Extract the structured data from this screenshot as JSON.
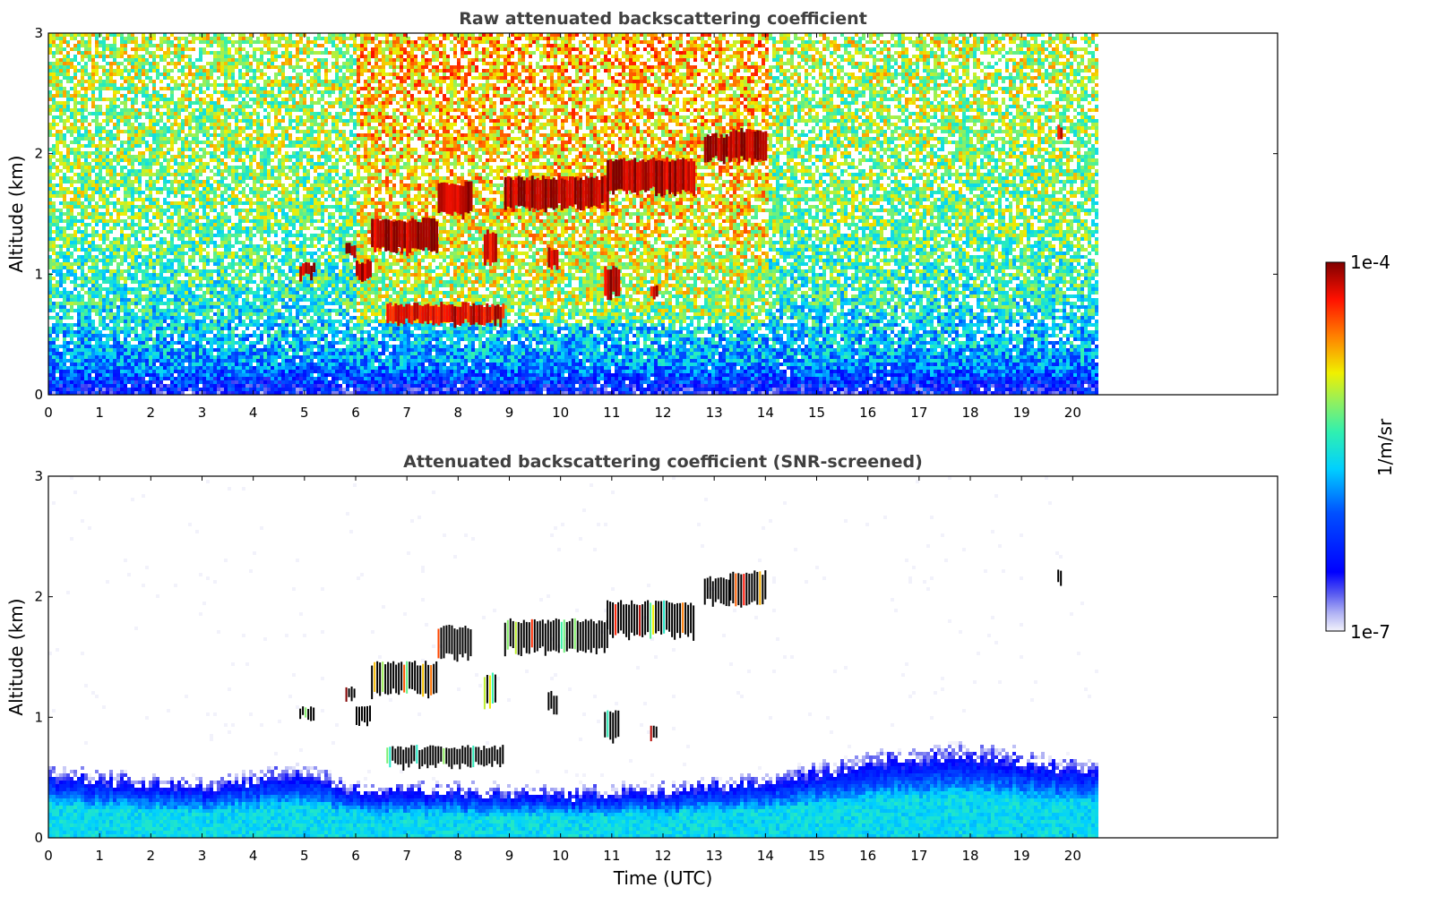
{
  "chart_data": [
    {
      "type": "heatmap",
      "title": "Raw attenuated backscattering coefficient",
      "xlabel": "",
      "ylabel": "Altitude (km)",
      "xlim": [
        0,
        24
      ],
      "ylim": [
        0,
        3
      ],
      "x_ticks": [
        0,
        1,
        2,
        3,
        4,
        5,
        6,
        7,
        8,
        9,
        10,
        11,
        12,
        13,
        14,
        15,
        16,
        17,
        18,
        19,
        20
      ],
      "y_ticks": [
        0,
        1,
        2,
        3
      ],
      "data_extent_hours": [
        0,
        20.45
      ],
      "noise_background": {
        "0.0": 3e-07,
        "0.3": 1.5e-06,
        "0.8": 3.5e-06,
        "1.5": 6e-06,
        "3.0": 9e-06
      },
      "aerosol_layers": [
        {
          "time_start": 4.9,
          "time_end": 5.2,
          "alt_bottom": 0.98,
          "alt_top": 1.08,
          "value": 0.0001
        },
        {
          "time_start": 5.8,
          "time_end": 6.0,
          "alt_bottom": 1.15,
          "alt_top": 1.25,
          "value": 0.0001
        },
        {
          "time_start": 6.0,
          "time_end": 6.3,
          "alt_bottom": 0.95,
          "alt_top": 1.1,
          "value": 0.0001
        },
        {
          "time_start": 6.3,
          "time_end": 7.6,
          "alt_bottom": 1.2,
          "alt_top": 1.45,
          "value": 9e-05
        },
        {
          "time_start": 7.6,
          "time_end": 8.25,
          "alt_bottom": 1.5,
          "alt_top": 1.75,
          "value": 0.0001
        },
        {
          "time_start": 8.5,
          "time_end": 8.75,
          "alt_bottom": 1.1,
          "alt_top": 1.35,
          "value": 8e-05
        },
        {
          "time_start": 8.9,
          "time_end": 10.9,
          "alt_bottom": 1.55,
          "alt_top": 1.8,
          "value": 0.0001
        },
        {
          "time_start": 10.9,
          "time_end": 12.6,
          "alt_bottom": 1.68,
          "alt_top": 1.95,
          "value": 0.0001
        },
        {
          "time_start": 12.8,
          "time_end": 13.3,
          "alt_bottom": 1.95,
          "alt_top": 2.15,
          "value": 9e-05
        },
        {
          "time_start": 13.3,
          "time_end": 14.0,
          "alt_bottom": 1.95,
          "alt_top": 2.2,
          "value": 0.0001
        },
        {
          "time_start": 9.75,
          "time_end": 9.95,
          "alt_bottom": 1.05,
          "alt_top": 1.2,
          "value": 8e-05
        },
        {
          "time_start": 10.85,
          "time_end": 11.15,
          "alt_bottom": 0.82,
          "alt_top": 1.05,
          "value": 9e-05
        },
        {
          "time_start": 11.75,
          "time_end": 11.9,
          "alt_bottom": 0.82,
          "alt_top": 0.92,
          "value": 8e-05
        },
        {
          "time_start": 6.6,
          "time_end": 8.9,
          "alt_bottom": 0.6,
          "alt_top": 0.75,
          "value": 7e-05
        },
        {
          "time_start": 19.7,
          "time_end": 19.8,
          "alt_bottom": 2.12,
          "alt_top": 2.22,
          "value": 7e-05
        }
      ]
    },
    {
      "type": "heatmap",
      "title": "Attenuated backscattering coefficient (SNR-screened)",
      "xlabel": "Time (UTC)",
      "ylabel": "Altitude (km)",
      "xlim": [
        0,
        24
      ],
      "ylim": [
        0,
        3
      ],
      "x_ticks": [
        0,
        1,
        2,
        3,
        4,
        5,
        6,
        7,
        8,
        9,
        10,
        11,
        12,
        13,
        14,
        15,
        16,
        17,
        18,
        19,
        20
      ],
      "y_ticks": [
        0,
        1,
        2,
        3
      ],
      "data_extent_hours": [
        0,
        20.45
      ],
      "boundary_layer_top_km": [
        {
          "time": 0,
          "alt": 0.6
        },
        {
          "time": 3,
          "alt": 0.5
        },
        {
          "time": 5,
          "alt": 0.62
        },
        {
          "time": 6,
          "alt": 0.45
        },
        {
          "time": 8,
          "alt": 0.45
        },
        {
          "time": 10,
          "alt": 0.42
        },
        {
          "time": 12,
          "alt": 0.45
        },
        {
          "time": 14,
          "alt": 0.55
        },
        {
          "time": 16,
          "alt": 0.72
        },
        {
          "time": 18,
          "alt": 0.8
        },
        {
          "time": 20.45,
          "alt": 0.65
        }
      ],
      "boundary_layer_value": 2e-06,
      "screened_layers": "same as raw panel aerosol_layers (saturated values drawn black)"
    }
  ],
  "colorbar": {
    "label": "1/m/sr",
    "max_label": "1e-4",
    "min_label": "1e-7",
    "scale": "log",
    "range": [
      1e-07,
      0.0001
    ],
    "colormap": "jet-like with light lavender at low end"
  }
}
